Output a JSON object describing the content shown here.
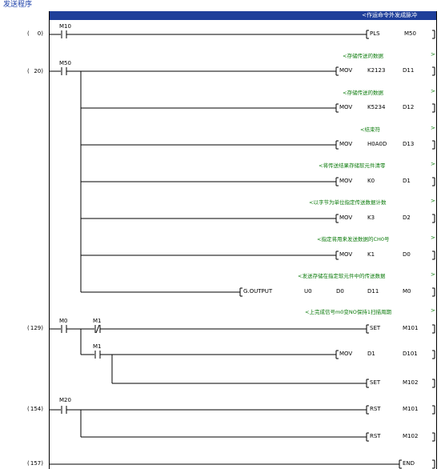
{
  "window_title": "发送程序",
  "selected_comment": "<作运命令外发成脉冲",
  "rungs": [
    {
      "step": "0",
      "contacts": [
        {
          "dev": "M10",
          "type": "NO"
        }
      ],
      "outputs": [
        {
          "comment": "",
          "instr": "PLS",
          "args": [
            "M50"
          ]
        }
      ]
    },
    {
      "step": "20",
      "contacts": [
        {
          "dev": "M50",
          "type": "NO"
        }
      ],
      "outputs": [
        {
          "comment": "<存储传送的数据",
          "instr": "MOV",
          "args": [
            "K2123",
            "D11"
          ]
        },
        {
          "comment": "<存储传送的数据",
          "instr": "MOV",
          "args": [
            "K5234",
            "D12"
          ]
        },
        {
          "comment": "<结束符",
          "instr": "MOV",
          "args": [
            "H0A0D",
            "D13"
          ]
        },
        {
          "comment": "<将传送结果存储软元件清零",
          "instr": "MOV",
          "args": [
            "K0",
            "D1"
          ]
        },
        {
          "comment": "<以字节为单位指定传送数据计数",
          "instr": "MOV",
          "args": [
            "K3",
            "D2"
          ]
        },
        {
          "comment": "<指定将用来发送数据的CH0号",
          "instr": "MOV",
          "args": [
            "K1",
            "D0"
          ]
        },
        {
          "comment": "<发送存储在指定软元件中的传送数据",
          "instr": "G.OUTPUT",
          "args": [
            "U0",
            "D0",
            "D11",
            "M0"
          ]
        }
      ]
    },
    {
      "step": "129",
      "contacts": [
        {
          "dev": "M0",
          "type": "NO"
        },
        {
          "dev": "M1",
          "type": "NC"
        },
        {
          "dev": "M1",
          "type": "NO"
        }
      ],
      "outputs": [
        {
          "comment": "<上完成信号m0变NO保持1扫描周期",
          "instr": "SET",
          "args": [
            "M101"
          ]
        },
        {
          "comment": "",
          "instr": "MOV",
          "args": [
            "D1",
            "D101"
          ]
        },
        {
          "comment": "",
          "instr": "SET",
          "args": [
            "M102"
          ]
        }
      ]
    },
    {
      "step": "154",
      "contacts": [
        {
          "dev": "M20",
          "type": "NO"
        }
      ],
      "outputs": [
        {
          "comment": "",
          "instr": "RST",
          "args": [
            "M101"
          ]
        },
        {
          "comment": "",
          "instr": "RST",
          "args": [
            "M102"
          ]
        }
      ]
    },
    {
      "step": "157",
      "contacts": [],
      "outputs": [
        {
          "comment": "",
          "instr": "END",
          "args": []
        }
      ]
    }
  ]
}
